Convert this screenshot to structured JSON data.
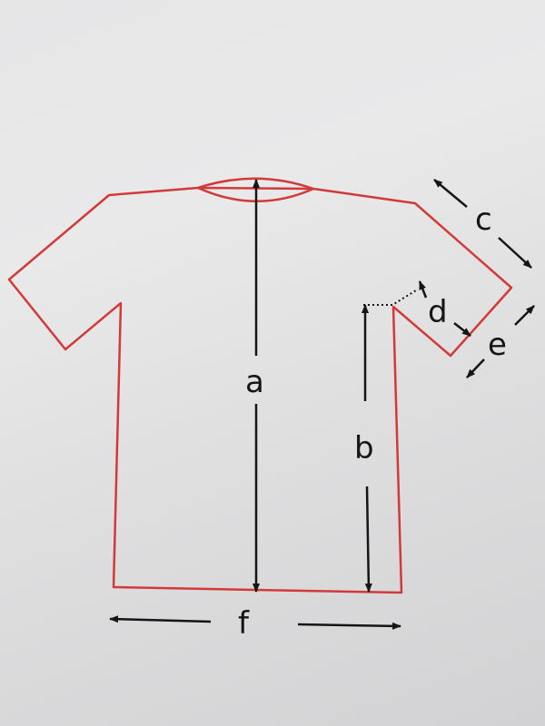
{
  "colors": {
    "paper": "#e6e6e7",
    "outline": "#d23a3a",
    "ink": "#151515"
  },
  "measurements": {
    "a": "a",
    "b": "b",
    "c": "c",
    "d": "d",
    "e": "e",
    "f": "f"
  }
}
